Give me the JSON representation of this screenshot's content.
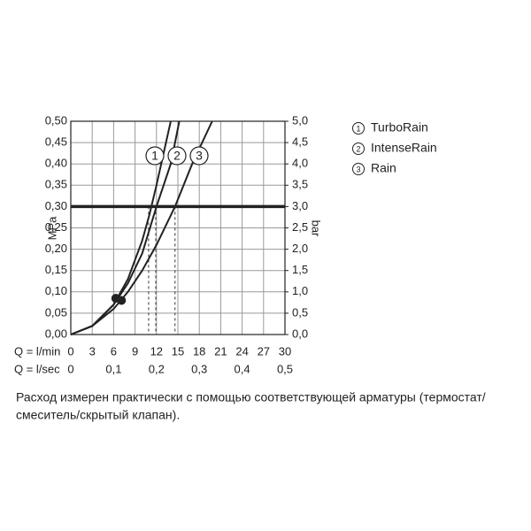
{
  "chart_data": {
    "type": "line",
    "y_label": "MPa",
    "y2_label": "bar",
    "x_label": "Q = l/min",
    "x2_label": "Q = l/sec",
    "series": [
      {
        "name": "TurboRain",
        "marker_label": "1",
        "color": "#222222",
        "x": [
          0,
          3,
          6,
          8,
          10,
          11,
          12,
          14
        ],
        "values": [
          0,
          0.02,
          0.07,
          0.13,
          0.22,
          0.28,
          0.35,
          0.5
        ]
      },
      {
        "name": "IntenseRain",
        "marker_label": "2",
        "color": "#222222",
        "x": [
          0,
          3,
          6,
          8,
          10,
          12,
          14,
          15.2
        ],
        "values": [
          0,
          0.02,
          0.07,
          0.12,
          0.19,
          0.3,
          0.4,
          0.5
        ]
      },
      {
        "name": "Rain",
        "marker_label": "3",
        "color": "#222222",
        "x": [
          0,
          3,
          6,
          8,
          10,
          12,
          14.6,
          17,
          19.8
        ],
        "values": [
          0,
          0.02,
          0.06,
          0.1,
          0.15,
          0.21,
          0.3,
          0.4,
          0.5
        ]
      }
    ],
    "points": [
      {
        "x": 6.3,
        "y": 0.085
      },
      {
        "x": 7.1,
        "y": 0.08
      }
    ],
    "reference_y": 0.3,
    "reference_x": [
      10.9,
      11.9,
      14.6
    ],
    "xlim": [
      0,
      30
    ],
    "xticks": [
      0,
      3,
      6,
      9,
      12,
      15,
      18,
      21,
      24,
      27,
      30
    ],
    "x2lim": [
      0,
      0.5
    ],
    "x2ticks": [
      0,
      {
        "value": 0.1,
        "label": "0,1"
      },
      {
        "value": 0.2,
        "label": "0,2"
      },
      {
        "value": 0.3,
        "label": "0,3"
      },
      {
        "value": 0.4,
        "label": "0,4"
      },
      {
        "value": 0.5,
        "label": "0,5"
      }
    ],
    "ylim": [
      0,
      0.5
    ],
    "yticks": [
      {
        "value": 0,
        "label": "0,00"
      },
      {
        "value": 0.05,
        "label": "0,05"
      },
      {
        "value": 0.1,
        "label": "0,10"
      },
      {
        "value": 0.15,
        "label": "0,15"
      },
      {
        "value": 0.2,
        "label": "0,20"
      },
      {
        "value": 0.25,
        "label": "0,25"
      },
      {
        "value": 0.3,
        "label": "0,30"
      },
      {
        "value": 0.35,
        "label": "0,35"
      },
      {
        "value": 0.4,
        "label": "0,40"
      },
      {
        "value": 0.45,
        "label": "0,45"
      },
      {
        "value": 0.5,
        "label": "0,50"
      }
    ],
    "y2lim": [
      0,
      5
    ],
    "y2ticks": [
      {
        "value": 0,
        "label": "0,0"
      },
      {
        "value": 0.5,
        "label": "0,5"
      },
      {
        "value": 1,
        "label": "1,0"
      },
      {
        "value": 1.5,
        "label": "1,5"
      },
      {
        "value": 2,
        "label": "2,0"
      },
      {
        "value": 2.5,
        "label": "2,5"
      },
      {
        "value": 3,
        "label": "3,0"
      },
      {
        "value": 3.5,
        "label": "3,5"
      },
      {
        "value": 4,
        "label": "4,0"
      },
      {
        "value": 4.5,
        "label": "4,5"
      },
      {
        "value": 5,
        "label": "5,0"
      }
    ],
    "grid": true,
    "caption": [
      "Расход измерен практически с помощью соответствующей арматуры (термостат/",
      "смеситель/скрытый клапан)."
    ]
  }
}
